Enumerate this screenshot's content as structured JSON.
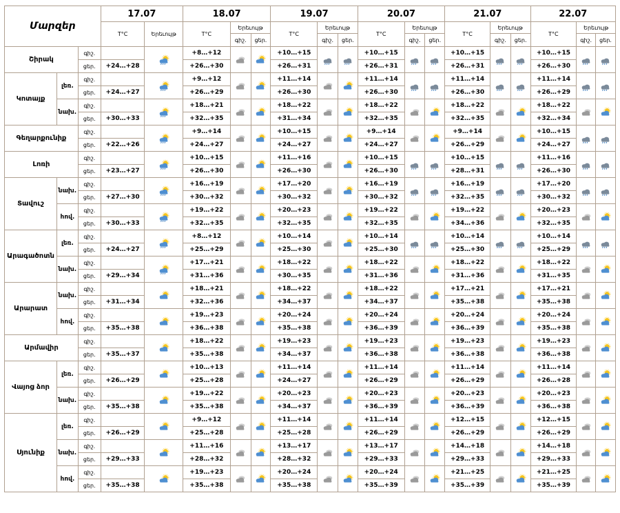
{
  "header": {
    "title": "Մարզեր",
    "dates": [
      "17.07",
      "18.07",
      "19.07",
      "20.07",
      "21.07",
      "22.07"
    ],
    "temp_label": "T°C",
    "weather_label": "Երեւույթ",
    "night_label": "գիշ.",
    "day_label": "ցեր."
  },
  "rows": [
    {
      "region": "Շիրակ",
      "span": 2,
      "sub": "",
      "subspan": 0,
      "period": "գիշ.",
      "d0t": "",
      "d0w": "",
      "temps": [
        "+8…+12",
        "+10…+15",
        "+10…+15",
        "+10…+15",
        "+10…+15"
      ],
      "icons": [
        "cloudy",
        "sun-cloud",
        "rain-cloud",
        "rain-cloud",
        "rain-cloud",
        "rain-cloud",
        "rain-cloud",
        "rain-cloud",
        "rain-cloud",
        "rain-cloud"
      ]
    },
    {
      "region": "",
      "span": 0,
      "sub": "",
      "subspan": 0,
      "period": "ցեր.",
      "d0t": "+24…+28",
      "d0w": "sun-rain",
      "temps": [
        "+26…+30",
        "+26…+31",
        "+26…+31",
        "+26…+31",
        "+26…+30"
      ],
      "icons": []
    },
    {
      "region": "Կոտայք",
      "span": 4,
      "sub": "լեռ.",
      "subspan": 2,
      "period": "գիշ.",
      "d0t": "",
      "d0w": "",
      "temps": [
        "+9…+12",
        "+11…+14",
        "+11…+14",
        "+11…+14",
        "+11…+14"
      ],
      "icons": [
        "cloudy",
        "sun-cloud",
        "cloudy",
        "sun-cloud",
        "rain-cloud",
        "rain-cloud",
        "rain-cloud",
        "rain-cloud",
        "rain-cloud",
        "rain-cloud"
      ]
    },
    {
      "region": "",
      "span": 0,
      "sub": "",
      "subspan": 0,
      "period": "ցեր.",
      "d0t": "+24…+27",
      "d0w": "sun-rain",
      "temps": [
        "+26…+29",
        "+26…+30",
        "+26…+30",
        "+26…+30",
        "+26…+29"
      ],
      "icons": []
    },
    {
      "region": "",
      "span": 0,
      "sub": "նախ.",
      "subspan": 2,
      "period": "գիշ.",
      "d0t": "",
      "d0w": "",
      "temps": [
        "+18…+21",
        "+18…+22",
        "+18…+22",
        "+18…+22",
        "+18…+22"
      ],
      "icons": [
        "cloudy",
        "sun-cloud",
        "cloudy",
        "sun-cloud",
        "cloudy",
        "sun-cloud",
        "cloudy",
        "sun-cloud",
        "cloudy",
        "sun-cloud"
      ]
    },
    {
      "region": "",
      "span": 0,
      "sub": "",
      "subspan": 0,
      "period": "ցեր.",
      "d0t": "+30…+33",
      "d0w": "sun-rain",
      "temps": [
        "+32…+35",
        "+31…+34",
        "+32…+35",
        "+32…+35",
        "+32…+34"
      ],
      "icons": []
    },
    {
      "region": "Գեղարքունիք",
      "span": 2,
      "sub": "",
      "subspan": 0,
      "period": "գիշ.",
      "d0t": "",
      "d0w": "",
      "temps": [
        "+9…+14",
        "+10…+15",
        "+9…+14",
        "+9…+14",
        "+10…+15"
      ],
      "icons": [
        "cloudy",
        "sun-cloud",
        "cloudy",
        "sun-cloud",
        "cloudy",
        "sun-cloud",
        "cloudy",
        "sun-cloud",
        "rain-cloud",
        "rain-cloud"
      ]
    },
    {
      "region": "",
      "span": 0,
      "sub": "",
      "subspan": 0,
      "period": "ցեր.",
      "d0t": "+22…+26",
      "d0w": "sun-rain",
      "temps": [
        "+24…+27",
        "+24…+27",
        "+24…+27",
        "+26…+29",
        "+24…+27"
      ],
      "icons": []
    },
    {
      "region": "Լոռի",
      "span": 2,
      "sub": "",
      "subspan": 0,
      "period": "գիշ.",
      "d0t": "",
      "d0w": "",
      "temps": [
        "+10…+15",
        "+11…+16",
        "+10…+15",
        "+10…+15",
        "+11…+16"
      ],
      "icons": [
        "cloudy",
        "sun-cloud",
        "cloudy",
        "sun-cloud",
        "rain-cloud",
        "rain-cloud",
        "rain-cloud",
        "rain-cloud",
        "rain-cloud",
        "rain-cloud"
      ]
    },
    {
      "region": "",
      "span": 0,
      "sub": "",
      "subspan": 0,
      "period": "ցեր.",
      "d0t": "+23…+27",
      "d0w": "sun-rain",
      "temps": [
        "+26…+30",
        "+26…+30",
        "+26…+30",
        "+28…+31",
        "+26…+30"
      ],
      "icons": []
    },
    {
      "region": "Տավուշ",
      "span": 4,
      "sub": "նախ.",
      "subspan": 2,
      "period": "գիշ.",
      "d0t": "",
      "d0w": "",
      "temps": [
        "+16…+19",
        "+17…+20",
        "+16…+19",
        "+16…+19",
        "+17…+20"
      ],
      "icons": [
        "cloudy",
        "sun-cloud",
        "cloudy",
        "sun-cloud",
        "rain-cloud",
        "rain-cloud",
        "rain-cloud",
        "rain-cloud",
        "rain-cloud",
        "rain-cloud"
      ]
    },
    {
      "region": "",
      "span": 0,
      "sub": "",
      "subspan": 0,
      "period": "ցեր.",
      "d0t": "+27…+30",
      "d0w": "sun-rain",
      "temps": [
        "+30…+32",
        "+30…+32",
        "+30…+32",
        "+32…+35",
        "+30…+32"
      ],
      "icons": []
    },
    {
      "region": "",
      "span": 0,
      "sub": "հով.",
      "subspan": 2,
      "period": "գիշ.",
      "d0t": "",
      "d0w": "",
      "temps": [
        "+19…+22",
        "+20…+23",
        "+19…+22",
        "+19…+22",
        "+20…+23"
      ],
      "icons": [
        "cloudy",
        "sun-cloud",
        "cloudy",
        "sun-cloud",
        "cloudy",
        "sun-cloud",
        "cloudy",
        "sun-cloud",
        "cloudy",
        "sun-cloud"
      ]
    },
    {
      "region": "",
      "span": 0,
      "sub": "",
      "subspan": 0,
      "period": "ցեր.",
      "d0t": "+30…+33",
      "d0w": "sun-rain",
      "temps": [
        "+32…+35",
        "+32…+35",
        "+32…+35",
        "+34…+36",
        "+32…+35"
      ],
      "icons": []
    },
    {
      "region": "Արագածոտն",
      "span": 4,
      "sub": "լեռ.",
      "subspan": 2,
      "period": "գիշ.",
      "d0t": "",
      "d0w": "",
      "temps": [
        "+8…+12",
        "+10…+14",
        "+10…+14",
        "+10…+14",
        "+10…+14"
      ],
      "icons": [
        "cloudy",
        "sun-cloud",
        "cloudy",
        "sun-cloud",
        "rain-cloud",
        "rain-cloud",
        "rain-cloud",
        "rain-cloud",
        "rain-cloud",
        "rain-cloud"
      ]
    },
    {
      "region": "",
      "span": 0,
      "sub": "",
      "subspan": 0,
      "period": "ցեր.",
      "d0t": "+24…+27",
      "d0w": "sun-rain",
      "temps": [
        "+25…+29",
        "+25…+30",
        "+25…+30",
        "+25…+30",
        "+25…+29"
      ],
      "icons": []
    },
    {
      "region": "",
      "span": 0,
      "sub": "նախ.",
      "subspan": 2,
      "period": "գիշ.",
      "d0t": "",
      "d0w": "",
      "temps": [
        "+17…+21",
        "+18…+22",
        "+18…+22",
        "+18…+22",
        "+18…+22"
      ],
      "icons": [
        "cloudy",
        "sun-cloud",
        "cloudy",
        "sun-cloud",
        "cloudy",
        "sun-cloud",
        "cloudy",
        "sun-cloud",
        "cloudy",
        "sun-cloud"
      ]
    },
    {
      "region": "",
      "span": 0,
      "sub": "",
      "subspan": 0,
      "period": "ցեր.",
      "d0t": "+29…+34",
      "d0w": "sun-rain",
      "temps": [
        "+31…+36",
        "+30…+35",
        "+31…+36",
        "+31…+36",
        "+31…+35"
      ],
      "icons": []
    },
    {
      "region": "Արարատ",
      "span": 4,
      "sub": "նախ.",
      "subspan": 2,
      "period": "գիշ.",
      "d0t": "",
      "d0w": "",
      "temps": [
        "+18…+21",
        "+18…+22",
        "+18…+22",
        "+17…+21",
        "+17…+21"
      ],
      "icons": [
        "cloudy",
        "sun-cloud",
        "cloudy",
        "sun-cloud",
        "cloudy",
        "sun-cloud",
        "cloudy",
        "sun-cloud",
        "cloudy",
        "sun-cloud"
      ]
    },
    {
      "region": "",
      "span": 0,
      "sub": "",
      "subspan": 0,
      "period": "ցեր.",
      "d0t": "+31…+34",
      "d0w": "sun-cloud",
      "temps": [
        "+32…+36",
        "+34…+37",
        "+34…+37",
        "+35…+38",
        "+35…+38"
      ],
      "icons": []
    },
    {
      "region": "",
      "span": 0,
      "sub": "հով.",
      "subspan": 2,
      "period": "գիշ.",
      "d0t": "",
      "d0w": "",
      "temps": [
        "+19…+23",
        "+20…+24",
        "+20…+24",
        "+20…+24",
        "+20…+24"
      ],
      "icons": [
        "cloudy",
        "sun-cloud",
        "cloudy",
        "sun-cloud",
        "cloudy",
        "sun-cloud",
        "cloudy",
        "sun-cloud",
        "cloudy",
        "sun-cloud"
      ]
    },
    {
      "region": "",
      "span": 0,
      "sub": "",
      "subspan": 0,
      "period": "ցեր.",
      "d0t": "+35…+38",
      "d0w": "sun-cloud",
      "temps": [
        "+36…+38",
        "+35…+38",
        "+36…+39",
        "+36…+39",
        "+35…+38"
      ],
      "icons": []
    },
    {
      "region": "Արմավիր",
      "span": 2,
      "sub": "",
      "subspan": 0,
      "period": "գիշ.",
      "d0t": "",
      "d0w": "",
      "temps": [
        "+18…+22",
        "+19…+23",
        "+19…+23",
        "+19…+23",
        "+19…+23"
      ],
      "icons": [
        "cloudy",
        "sun-cloud",
        "cloudy",
        "sun-cloud",
        "cloudy",
        "sun-cloud",
        "cloudy",
        "sun-cloud",
        "cloudy",
        "sun-cloud"
      ]
    },
    {
      "region": "",
      "span": 0,
      "sub": "",
      "subspan": 0,
      "period": "ցեր.",
      "d0t": "+35…+37",
      "d0w": "sun-cloud",
      "temps": [
        "+35…+38",
        "+34…+37",
        "+36…+38",
        "+36…+38",
        "+36…+38"
      ],
      "icons": []
    },
    {
      "region": "Վայոց ձոր",
      "span": 4,
      "sub": "լեռ.",
      "subspan": 2,
      "period": "գիշ.",
      "d0t": "",
      "d0w": "",
      "temps": [
        "+10…+13",
        "+11…+14",
        "+11…+14",
        "+11…+14",
        "+11…+14"
      ],
      "icons": [
        "cloudy",
        "sun-cloud",
        "cloudy",
        "sun-cloud",
        "cloudy",
        "sun-cloud",
        "cloudy",
        "sun-cloud",
        "cloudy",
        "sun-cloud"
      ]
    },
    {
      "region": "",
      "span": 0,
      "sub": "",
      "subspan": 0,
      "period": "ցեր.",
      "d0t": "+26…+29",
      "d0w": "sun-cloud",
      "temps": [
        "+25…+28",
        "+24…+27",
        "+26…+29",
        "+26…+29",
        "+26…+28"
      ],
      "icons": []
    },
    {
      "region": "",
      "span": 0,
      "sub": "նախ.",
      "subspan": 2,
      "period": "գիշ.",
      "d0t": "",
      "d0w": "",
      "temps": [
        "+19…+22",
        "+20…+23",
        "+20…+23",
        "+20…+23",
        "+20…+23"
      ],
      "icons": [
        "cloudy",
        "sun-cloud",
        "cloudy",
        "sun-cloud",
        "cloudy",
        "sun-cloud",
        "cloudy",
        "sun-cloud",
        "cloudy",
        "sun-cloud"
      ]
    },
    {
      "region": "",
      "span": 0,
      "sub": "",
      "subspan": 0,
      "period": "ցեր.",
      "d0t": "+35…+38",
      "d0w": "sun-cloud",
      "temps": [
        "+35…+38",
        "+34…+37",
        "+36…+39",
        "+36…+39",
        "+36…+38"
      ],
      "icons": []
    },
    {
      "region": "Սյունիք",
      "span": 6,
      "sub": "լեռ.",
      "subspan": 2,
      "period": "գիշ.",
      "d0t": "",
      "d0w": "",
      "temps": [
        "+9…+12",
        "+11…+14",
        "+11…+14",
        "+12…+15",
        "+12…+15"
      ],
      "icons": [
        "cloudy",
        "sun-cloud",
        "cloudy",
        "sun-cloud",
        "cloudy",
        "sun-cloud",
        "cloudy",
        "sun-cloud",
        "cloudy",
        "sun-cloud"
      ]
    },
    {
      "region": "",
      "span": 0,
      "sub": "",
      "subspan": 0,
      "period": "ցեր.",
      "d0t": "+26…+29",
      "d0w": "sun-cloud",
      "temps": [
        "+25…+28",
        "+25…+28",
        "+26…+29",
        "+26…+29",
        "+26…+29"
      ],
      "icons": []
    },
    {
      "region": "",
      "span": 0,
      "sub": "նախ.",
      "subspan": 2,
      "period": "գիշ.",
      "d0t": "",
      "d0w": "",
      "temps": [
        "+11…+16",
        "+13…+17",
        "+13…+17",
        "+14…+18",
        "+14…+18"
      ],
      "icons": [
        "cloudy",
        "sun-cloud",
        "cloudy",
        "sun-cloud",
        "cloudy",
        "sun-cloud",
        "cloudy",
        "sun-cloud",
        "cloudy",
        "sun-cloud"
      ]
    },
    {
      "region": "",
      "span": 0,
      "sub": "",
      "subspan": 0,
      "period": "ցեր.",
      "d0t": "+29…+33",
      "d0w": "sun-cloud",
      "temps": [
        "+28…+32",
        "+28…+32",
        "+29…+33",
        "+29…+33",
        "+29…+33"
      ],
      "icons": []
    },
    {
      "region": "",
      "span": 0,
      "sub": "հով.",
      "subspan": 2,
      "period": "գիշ.",
      "d0t": "",
      "d0w": "",
      "temps": [
        "+19…+23",
        "+20…+24",
        "+20…+24",
        "+21…+25",
        "+21…+25"
      ],
      "icons": [
        "cloudy",
        "sun-cloud",
        "cloudy",
        "sun-cloud",
        "cloudy",
        "sun-cloud",
        "cloudy",
        "sun-cloud",
        "cloudy",
        "sun-cloud"
      ]
    },
    {
      "region": "",
      "span": 0,
      "sub": "",
      "subspan": 0,
      "period": "ցեր.",
      "d0t": "+35…+38",
      "d0w": "sun-cloud",
      "temps": [
        "+35…+38",
        "+35…+38",
        "+35…+39",
        "+35…+39",
        "+35…+39"
      ],
      "icons": []
    }
  ]
}
